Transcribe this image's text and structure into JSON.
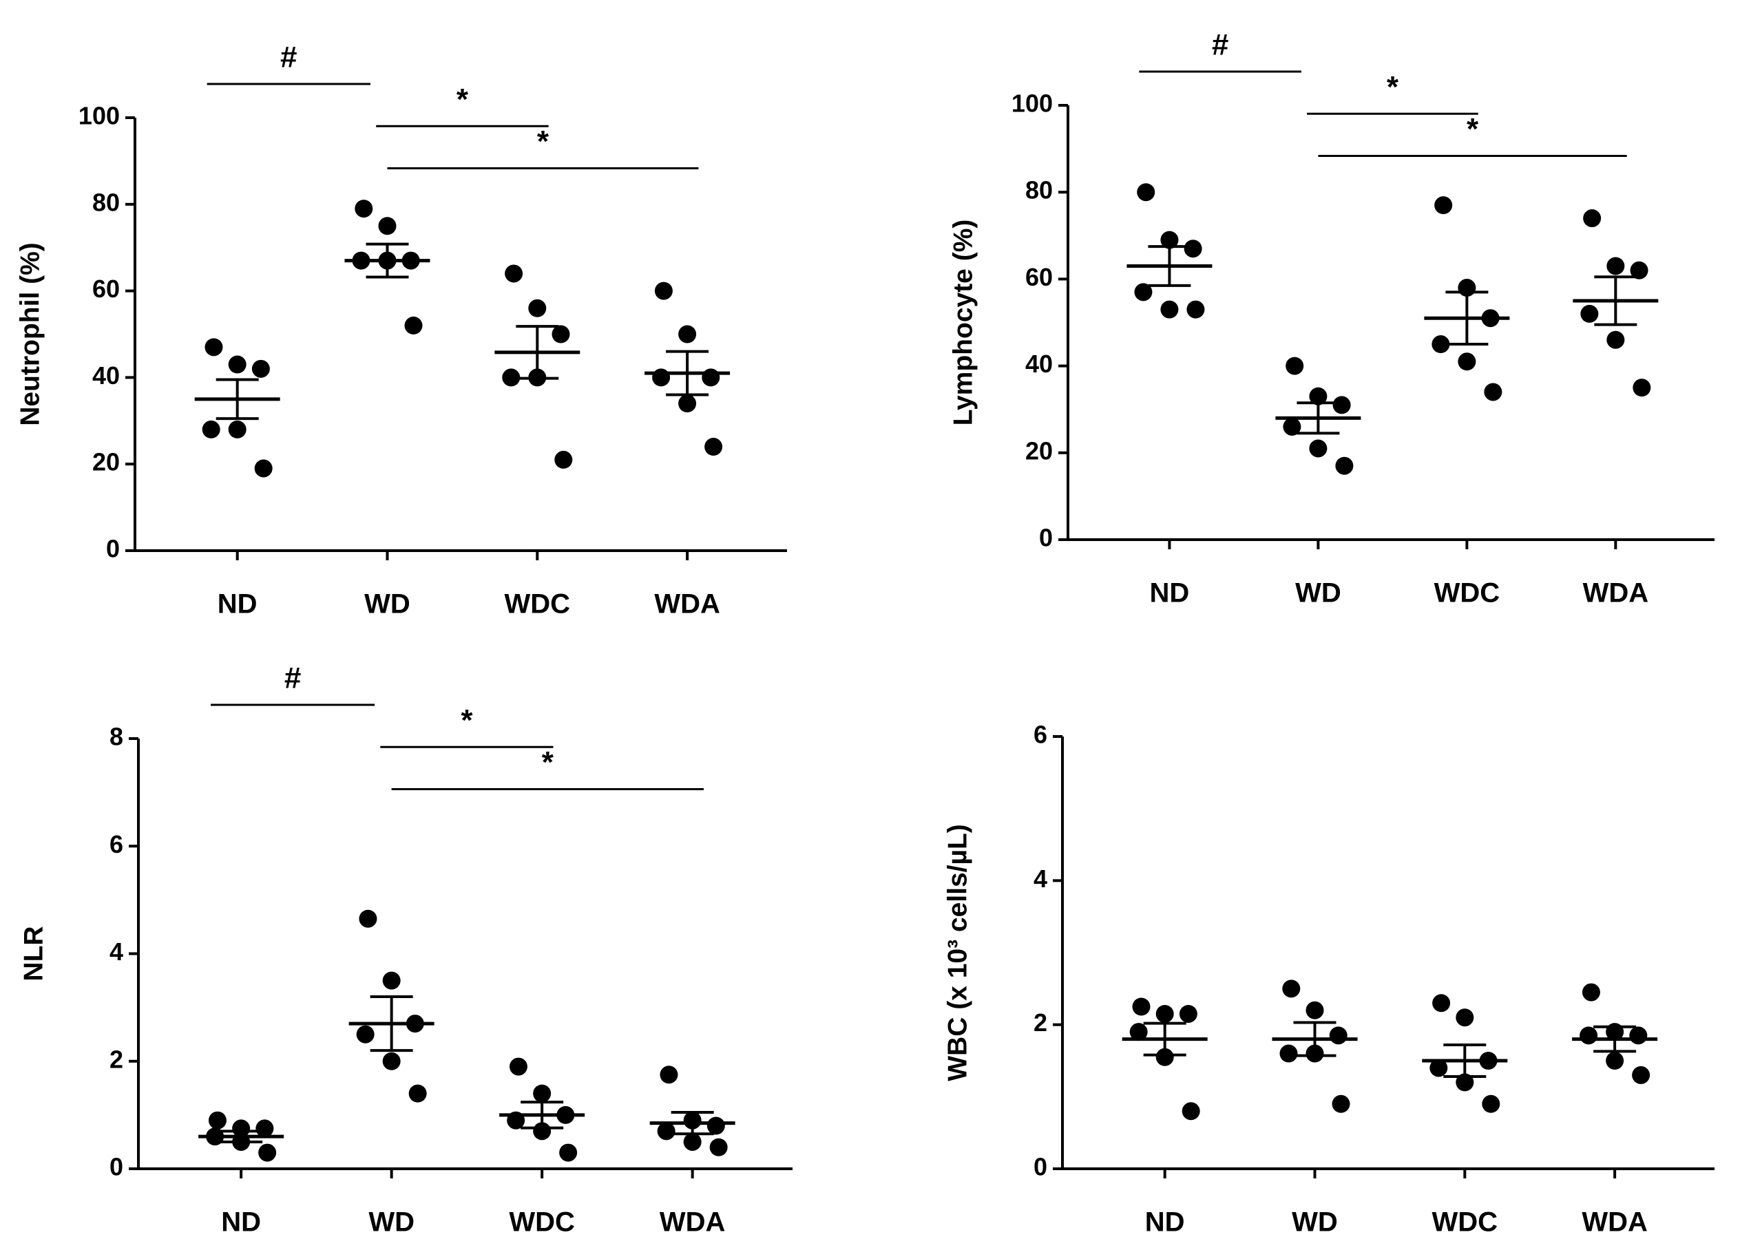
{
  "chart_data": [
    {
      "type": "dot",
      "ylabel": "Neutrophil (%)",
      "categories": [
        "ND",
        "WD",
        "WDC",
        "WDA"
      ],
      "points": [
        [
          47,
          43,
          42,
          28,
          28,
          19
        ],
        [
          79,
          75,
          67,
          67,
          67,
          52
        ],
        [
          64,
          56,
          50,
          40,
          40,
          21
        ],
        [
          60,
          50,
          40,
          40,
          34,
          24
        ]
      ],
      "means": [
        35,
        67,
        45.8,
        41
      ],
      "sems": [
        4.5,
        3.8,
        6,
        5
      ],
      "ylim": [
        0,
        100
      ],
      "yticks": [
        0,
        20,
        40,
        60,
        80,
        100
      ],
      "color": "#000000",
      "annotations": [
        {
          "text": "#",
          "groups": [
            "ND",
            "WD"
          ]
        },
        {
          "text": "*",
          "groups": [
            "WD",
            "WDC"
          ]
        },
        {
          "text": "*",
          "groups": [
            "WD",
            "WDA"
          ]
        }
      ]
    },
    {
      "type": "dot",
      "ylabel": "Lymphocyte (%)",
      "categories": [
        "ND",
        "WD",
        "WDC",
        "WDA"
      ],
      "points": [
        [
          80,
          69,
          67,
          57,
          53,
          53
        ],
        [
          40,
          33,
          31,
          26,
          21,
          17
        ],
        [
          77,
          58,
          51,
          45,
          41,
          34
        ],
        [
          74,
          63,
          62,
          52,
          46,
          35
        ]
      ],
      "means": [
        63,
        28,
        51,
        55
      ],
      "sems": [
        4.5,
        3.5,
        6,
        5.5
      ],
      "ylim": [
        0,
        100
      ],
      "yticks": [
        0,
        20,
        40,
        60,
        80,
        100
      ],
      "color": "#000000",
      "annotations": [
        {
          "text": "#",
          "groups": [
            "ND",
            "WD"
          ]
        },
        {
          "text": "*",
          "groups": [
            "WD",
            "WDC"
          ]
        },
        {
          "text": "*",
          "groups": [
            "WD",
            "WDA"
          ]
        }
      ]
    },
    {
      "type": "dot",
      "ylabel": "NLR",
      "categories": [
        "ND",
        "WD",
        "WDC",
        "WDA"
      ],
      "points": [
        [
          0.9,
          0.75,
          0.75,
          0.6,
          0.5,
          0.3
        ],
        [
          4.65,
          3.5,
          2.7,
          2.5,
          2.0,
          1.4
        ],
        [
          1.9,
          1.4,
          1.0,
          0.9,
          0.7,
          0.3
        ],
        [
          1.75,
          0.9,
          0.8,
          0.7,
          0.5,
          0.4
        ]
      ],
      "means": [
        0.6,
        2.7,
        1.0,
        0.85
      ],
      "sems": [
        0.1,
        0.5,
        0.24,
        0.2
      ],
      "ylim": [
        0,
        8
      ],
      "yticks": [
        0,
        2,
        4,
        6,
        8
      ],
      "color": "#000000",
      "annotations": [
        {
          "text": "#",
          "groups": [
            "ND",
            "WD"
          ]
        },
        {
          "text": "*",
          "groups": [
            "WD",
            "WDC"
          ]
        },
        {
          "text": "*",
          "groups": [
            "WD",
            "WDA"
          ]
        }
      ]
    },
    {
      "type": "dot",
      "ylabel": "WBC (x 10³ cells/µL)",
      "categories": [
        "ND",
        "WD",
        "WDC",
        "WDA"
      ],
      "points": [
        [
          2.25,
          2.15,
          2.15,
          1.9,
          1.55,
          0.8
        ],
        [
          2.5,
          2.2,
          1.85,
          1.6,
          1.6,
          0.9
        ],
        [
          2.3,
          2.1,
          1.5,
          1.4,
          1.2,
          0.9
        ],
        [
          2.45,
          1.9,
          1.85,
          1.85,
          1.5,
          1.3
        ]
      ],
      "means": [
        1.8,
        1.8,
        1.5,
        1.8
      ],
      "sems": [
        0.22,
        0.23,
        0.22,
        0.17
      ],
      "ylim": [
        0,
        6
      ],
      "yticks": [
        0,
        2,
        4,
        6
      ],
      "color": "#000000",
      "annotations": []
    }
  ]
}
